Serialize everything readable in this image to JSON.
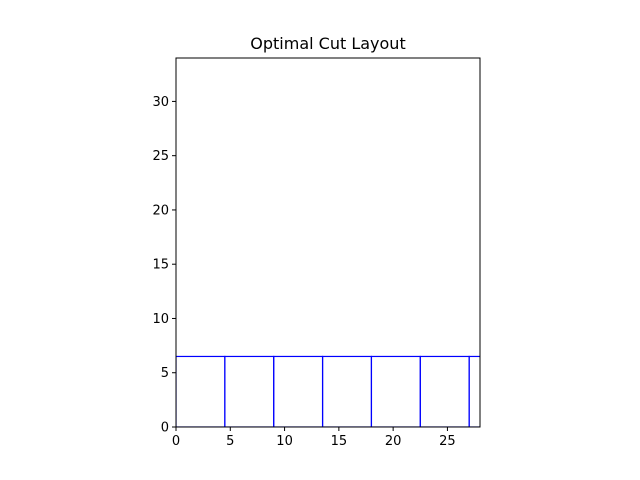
{
  "chart_data": {
    "type": "rectangles",
    "title": "Optimal Cut Layout",
    "xlabel": "",
    "ylabel": "",
    "xlim": [
      0,
      28
    ],
    "ylim": [
      0,
      34
    ],
    "xticks": [
      0,
      5,
      10,
      15,
      20,
      25
    ],
    "yticks": [
      0,
      5,
      10,
      15,
      20,
      25,
      30
    ],
    "grid": false,
    "legend": "none",
    "colors": {
      "edge": "#0000ff",
      "axis": "#000000",
      "background": "#ffffff"
    },
    "pieces": [
      {
        "x": 0.0,
        "y": 0,
        "width": 4.5,
        "height": 6.5
      },
      {
        "x": 4.5,
        "y": 0,
        "width": 4.5,
        "height": 6.5
      },
      {
        "x": 9.0,
        "y": 0,
        "width": 4.5,
        "height": 6.5
      },
      {
        "x": 13.5,
        "y": 0,
        "width": 4.5,
        "height": 6.5
      },
      {
        "x": 18.0,
        "y": 0,
        "width": 4.5,
        "height": 6.5
      },
      {
        "x": 22.5,
        "y": 0,
        "width": 4.5,
        "height": 6.5
      },
      {
        "x": 27.0,
        "y": 0,
        "width": 4.5,
        "height": 6.5
      }
    ]
  }
}
